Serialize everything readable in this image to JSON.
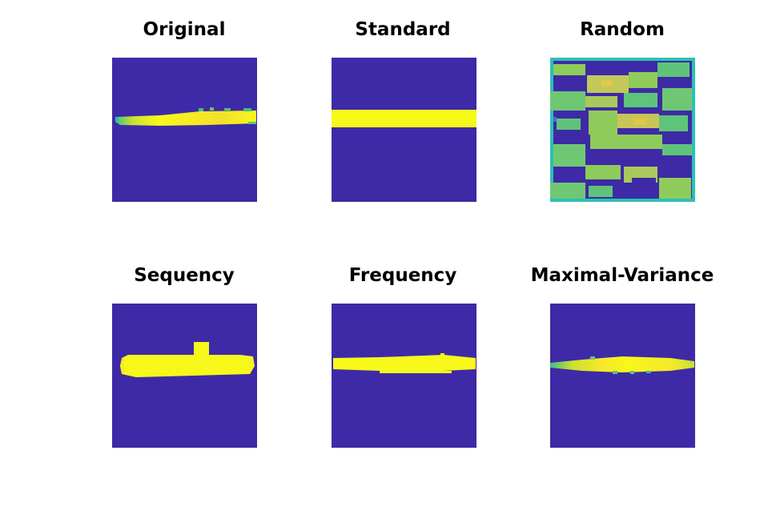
{
  "figure": {
    "panels": [
      {
        "title": "Original"
      },
      {
        "title": "Standard"
      },
      {
        "title": "Random"
      },
      {
        "title": "Sequency"
      },
      {
        "title": "Frequency"
      },
      {
        "title": "Maximal-Variance"
      }
    ]
  },
  "colors": {
    "background": "#3e2aa6",
    "object": "#f8f71a",
    "object_warm": "#f5e82a",
    "edge_green": "#3fbf8a",
    "mid_green": "#8fcb5a",
    "teal": "#2dbfb6",
    "blue_pixel": "#3a6ef0"
  }
}
